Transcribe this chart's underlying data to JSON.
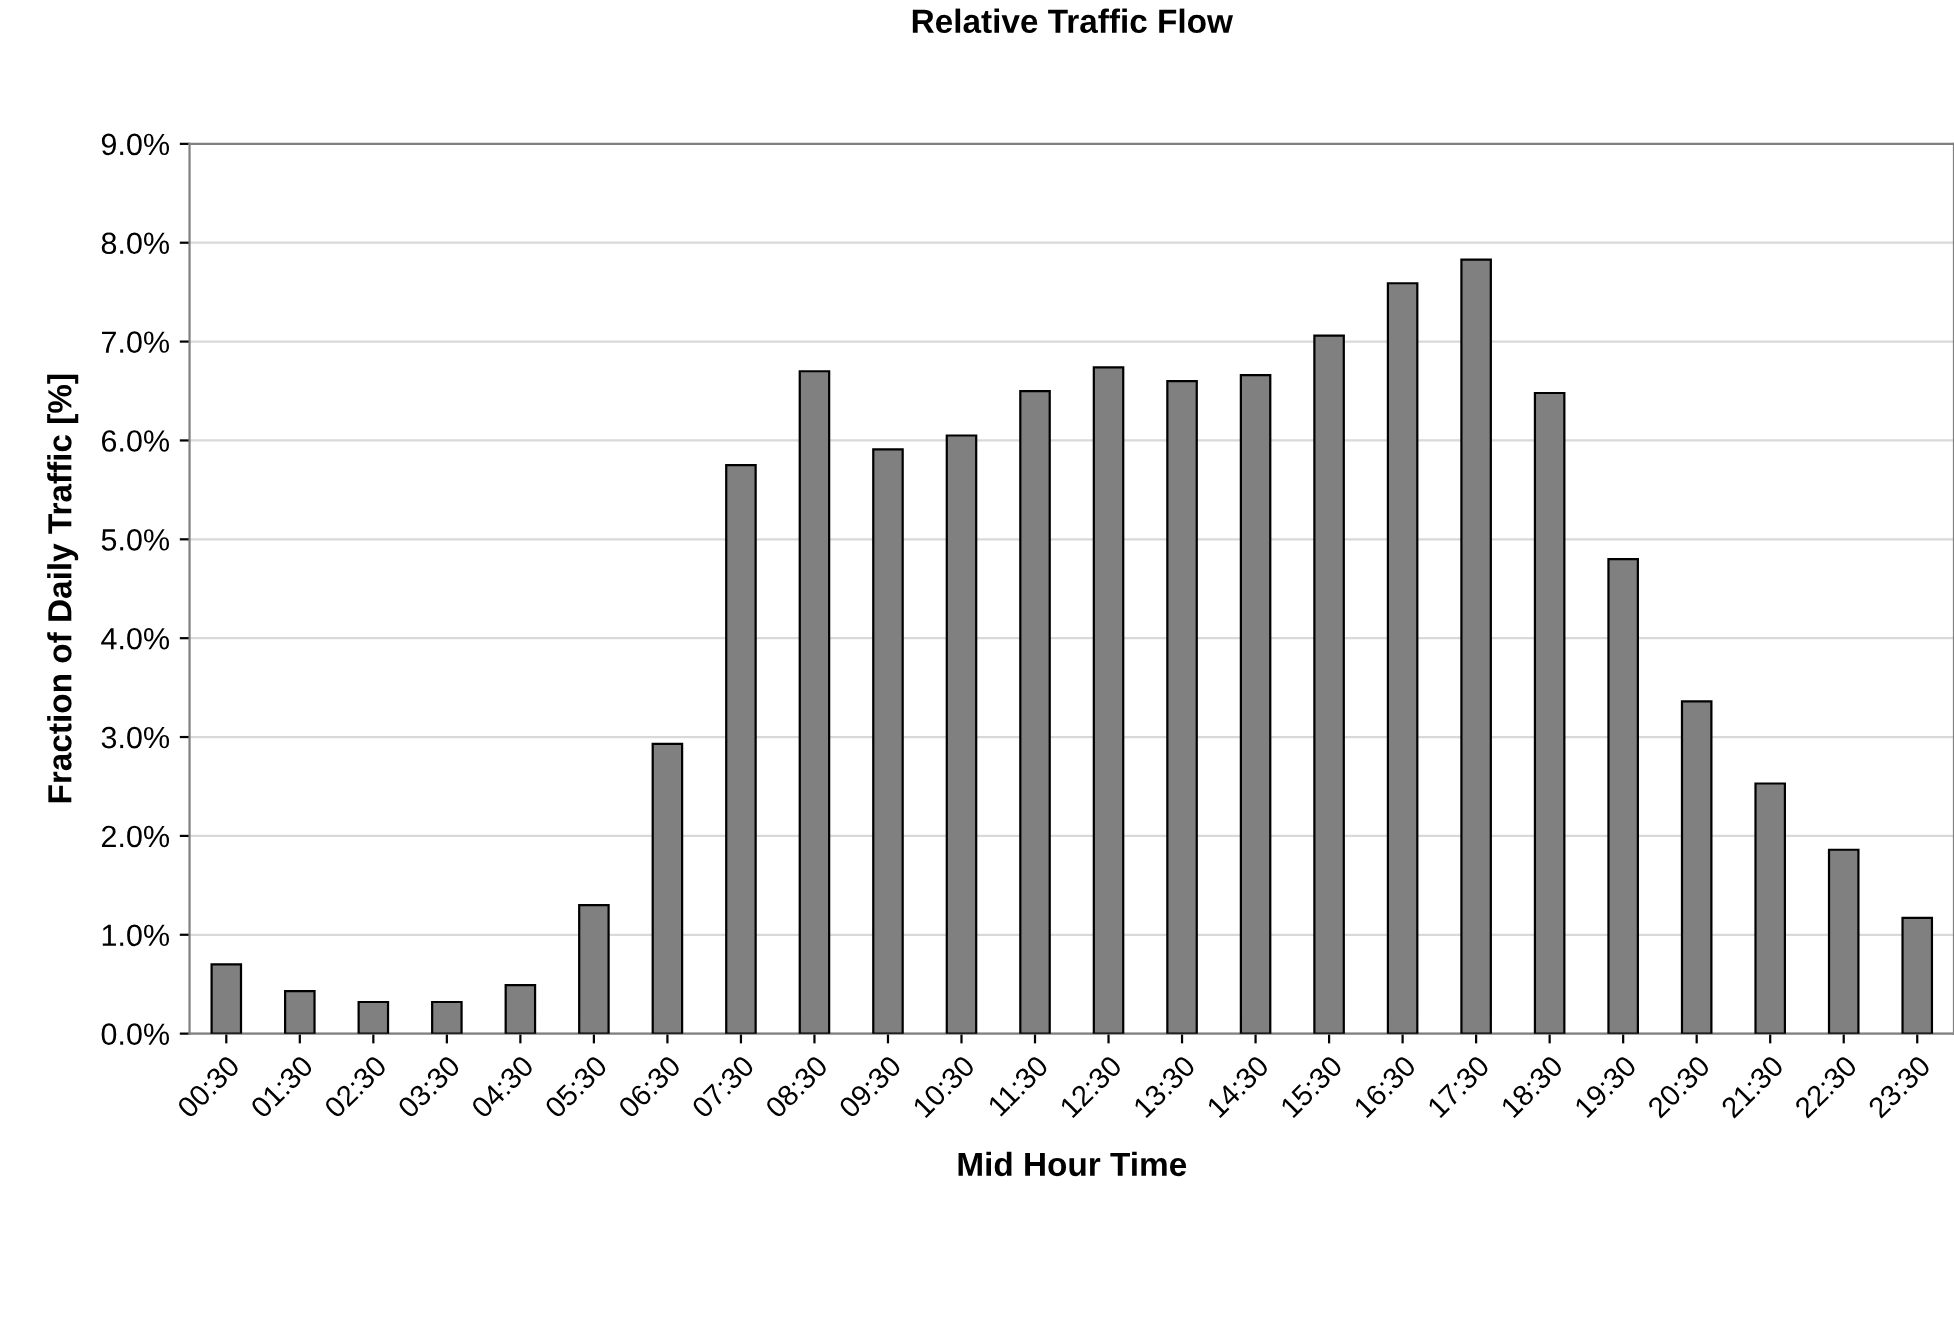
{
  "chart_data": {
    "type": "bar",
    "title": "Relative Traffic Flow",
    "xlabel": "Mid Hour Time",
    "ylabel": "Fraction of Daily Traffic [%]",
    "categories": [
      "00:30",
      "01:30",
      "02:30",
      "03:30",
      "04:30",
      "05:30",
      "06:30",
      "07:30",
      "08:30",
      "09:30",
      "10:30",
      "11:30",
      "12:30",
      "13:30",
      "14:30",
      "15:30",
      "16:30",
      "17:30",
      "18:30",
      "19:30",
      "20:30",
      "21:30",
      "22:30",
      "23:30"
    ],
    "values": [
      0.7,
      0.43,
      0.32,
      0.32,
      0.49,
      1.3,
      2.93,
      5.75,
      6.7,
      5.91,
      6.05,
      6.5,
      6.74,
      6.6,
      6.66,
      7.06,
      7.59,
      7.83,
      6.48,
      4.8,
      3.36,
      2.53,
      1.86,
      1.17
    ],
    "color": "#808080",
    "ylim": [
      0,
      9
    ],
    "yticks": [
      {
        "value": 0,
        "label": "0.0%"
      },
      {
        "value": 1,
        "label": "1.0%"
      },
      {
        "value": 2,
        "label": "2.0%"
      },
      {
        "value": 3,
        "label": "3.0%"
      },
      {
        "value": 4,
        "label": "4.0%"
      },
      {
        "value": 5,
        "label": "5.0%"
      },
      {
        "value": 6,
        "label": "6.0%"
      },
      {
        "value": 7,
        "label": "7.0%"
      },
      {
        "value": 8,
        "label": "8.0%"
      },
      {
        "value": 9,
        "label": "9.0%"
      }
    ],
    "grid": "y"
  }
}
